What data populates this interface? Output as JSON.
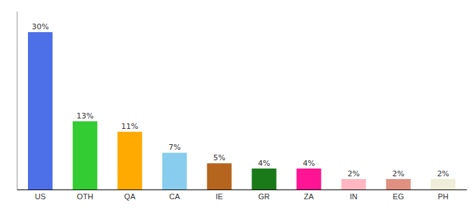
{
  "chart_data": {
    "type": "bar",
    "categories": [
      "US",
      "OTH",
      "QA",
      "CA",
      "IE",
      "GR",
      "ZA",
      "IN",
      "EG",
      "PH"
    ],
    "values": [
      30,
      13,
      11,
      7,
      5,
      4,
      4,
      2,
      2,
      2
    ],
    "value_labels": [
      "30%",
      "13%",
      "11%",
      "7%",
      "5%",
      "4%",
      "4%",
      "2%",
      "2%",
      "2%"
    ],
    "colors": [
      "#4d6fe8",
      "#33cc33",
      "#ffaa00",
      "#88ccee",
      "#b5651d",
      "#1a7a1a",
      "#ff1493",
      "#ffb6c1",
      "#e09080",
      "#f0eed8"
    ],
    "data_labels": true,
    "ylim": [
      0,
      34
    ],
    "tick_labels": "x"
  }
}
